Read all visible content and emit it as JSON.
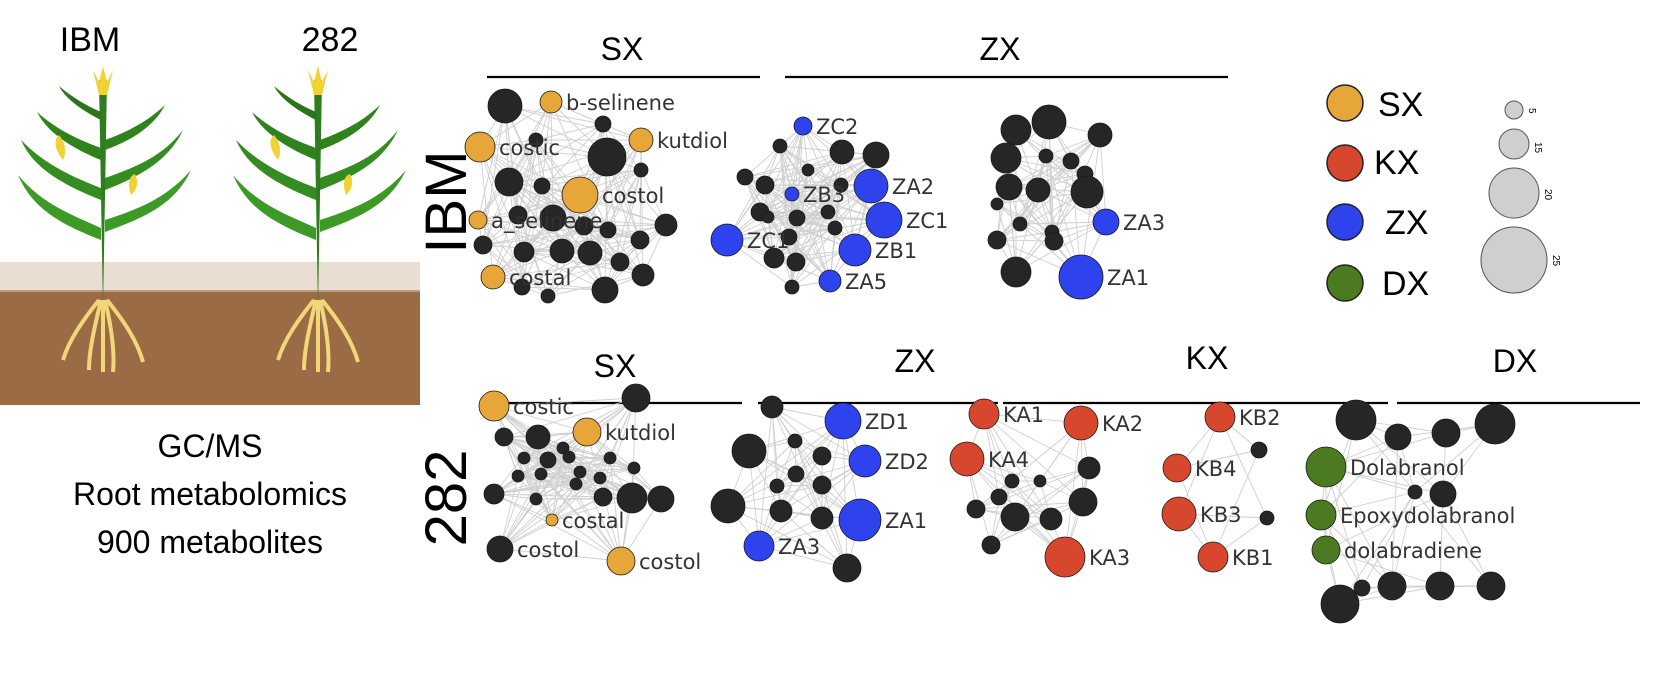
{
  "palette": {
    "SX": "#E6A63A",
    "KX": "#D7472E",
    "ZX": "#2E43EE",
    "DX": "#4C7A21",
    "other": "#262626",
    "scale": "#cfcfcf"
  },
  "left": {
    "population_labels": [
      {
        "text": "IBM",
        "color": "#8FC97A"
      },
      {
        "text": "282",
        "color": "#8AAACE"
      }
    ],
    "caption": [
      "GC/MS",
      "Root metabolomics",
      "900 metabolites"
    ]
  },
  "row_labels": [
    {
      "text": "IBM",
      "color": "#8FC97A"
    },
    {
      "text": "282",
      "color": "#8AAACE"
    }
  ],
  "group_headers": {
    "row1": [
      "SX",
      "ZX"
    ],
    "row2": [
      "SX",
      "ZX",
      "KX",
      "DX"
    ]
  },
  "legend": {
    "categories": [
      {
        "label": "SX",
        "color_key": "SX"
      },
      {
        "label": "KX",
        "color_key": "KX"
      },
      {
        "label": "ZX",
        "color_key": "ZX"
      },
      {
        "label": "DX",
        "color_key": "DX"
      }
    ],
    "sizes": [
      "5",
      "15",
      "20",
      "25"
    ]
  },
  "networks": [
    {
      "id": "ibm-sx",
      "nodes": [
        {
          "label": "b-selinene",
          "cat": "SX",
          "size": 11
        },
        {
          "label": "kutdiol",
          "cat": "SX",
          "size": 12
        },
        {
          "label": "costic",
          "cat": "SX",
          "size": 15
        },
        {
          "label": "costol",
          "cat": "SX",
          "size": 18
        },
        {
          "label": "a_selinene",
          "cat": "SX",
          "size": 9
        },
        {
          "label": "costal",
          "cat": "SX",
          "size": 12
        }
      ]
    },
    {
      "id": "ibm-zx1",
      "nodes": [
        {
          "label": "ZC2",
          "cat": "ZX",
          "size": 9
        },
        {
          "label": "ZB3",
          "cat": "ZX",
          "size": 7
        },
        {
          "label": "ZA2",
          "cat": "ZX",
          "size": 17
        },
        {
          "label": "ZC1",
          "cat": "ZX",
          "size": 18
        },
        {
          "label": "ZC1",
          "cat": "ZX",
          "size": 16
        },
        {
          "label": "ZB1",
          "cat": "ZX",
          "size": 16
        },
        {
          "label": "ZA5",
          "cat": "ZX",
          "size": 11
        }
      ]
    },
    {
      "id": "ibm-zx2",
      "nodes": [
        {
          "label": "ZA3",
          "cat": "ZX",
          "size": 13
        },
        {
          "label": "ZA1",
          "cat": "ZX",
          "size": 22
        }
      ]
    },
    {
      "id": "282-sx",
      "nodes": [
        {
          "label": "costic",
          "cat": "SX",
          "size": 15
        },
        {
          "label": "kutdiol",
          "cat": "SX",
          "size": 14
        },
        {
          "label": "costal",
          "cat": "SX",
          "size": 6
        },
        {
          "label": "costol",
          "cat": "other",
          "size": 13
        },
        {
          "label": "costol",
          "cat": "SX",
          "size": 14
        }
      ]
    },
    {
      "id": "282-zx",
      "nodes": [
        {
          "label": "ZD1",
          "cat": "ZX",
          "size": 18
        },
        {
          "label": "ZD2",
          "cat": "ZX",
          "size": 16
        },
        {
          "label": "ZA1",
          "cat": "ZX",
          "size": 21
        },
        {
          "label": "ZA3",
          "cat": "ZX",
          "size": 15
        }
      ]
    },
    {
      "id": "282-kx1",
      "nodes": [
        {
          "label": "KA1",
          "cat": "KX",
          "size": 15
        },
        {
          "label": "KA2",
          "cat": "KX",
          "size": 17
        },
        {
          "label": "KA4",
          "cat": "KX",
          "size": 17
        },
        {
          "label": "KA3",
          "cat": "KX",
          "size": 20
        }
      ]
    },
    {
      "id": "282-kx2",
      "nodes": [
        {
          "label": "KB2",
          "cat": "KX",
          "size": 15
        },
        {
          "label": "KB4",
          "cat": "KX",
          "size": 14
        },
        {
          "label": "KB3",
          "cat": "KX",
          "size": 17
        },
        {
          "label": "KB1",
          "cat": "KX",
          "size": 15
        }
      ]
    },
    {
      "id": "282-dx",
      "nodes": [
        {
          "label": "Dolabranol",
          "cat": "DX",
          "size": 20
        },
        {
          "label": "Epoxydolabranol",
          "cat": "DX",
          "size": 15
        },
        {
          "label": "dolabradiene",
          "cat": "DX",
          "size": 14
        }
      ]
    }
  ]
}
